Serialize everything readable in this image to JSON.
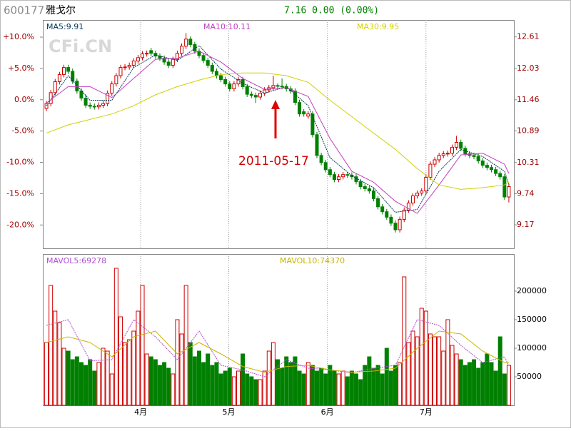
{
  "header": {
    "code": "600177",
    "name": "雅戈尔",
    "quote": "7.16  0.00  (0.00%)"
  },
  "watermark": "CFi.CN",
  "annotation": "2011-05-17",
  "chart_data": [
    {
      "type": "candlestick",
      "up_color": "#d00000",
      "down_color": "#008000",
      "xlim": [
        -0.5,
        106.5
      ],
      "ylim": [
        8.74,
        12.92
      ],
      "yticks": [
        12.61,
        12.03,
        11.46,
        10.89,
        10.31,
        9.74,
        9.17
      ],
      "y2lim": [
        -23.73,
        12.74
      ],
      "y2ticks": [
        {
          "value": 10,
          "label": "+10.0%"
        },
        {
          "value": 5,
          "label": "+5.0%"
        },
        {
          "value": 0,
          "label": "0.0%"
        },
        {
          "value": -5,
          "label": "-5.0%"
        },
        {
          "value": -10,
          "label": "-10.0%"
        },
        {
          "value": -15,
          "label": "-15.0%"
        },
        {
          "value": -20,
          "label": "-20.0%"
        }
      ],
      "open": [
        11.3,
        11.39,
        11.59,
        11.79,
        11.92,
        12.05,
        11.98,
        11.8,
        11.62,
        11.49,
        11.36,
        11.34,
        11.33,
        11.36,
        11.39,
        11.58,
        11.75,
        11.9,
        12.05,
        12.06,
        12.09,
        12.17,
        12.23,
        12.3,
        12.36,
        12.31,
        12.26,
        12.22,
        12.15,
        12.09,
        12.2,
        12.31,
        12.44,
        12.57,
        12.47,
        12.35,
        12.27,
        12.18,
        12.09,
        11.98,
        11.9,
        11.83,
        11.75,
        11.66,
        11.75,
        11.83,
        11.7,
        11.56,
        11.54,
        11.51,
        11.58,
        11.64,
        11.68,
        11.72,
        11.71,
        11.7,
        11.66,
        11.62,
        11.41,
        11.24,
        11.16,
        11.2,
        10.82,
        10.44,
        10.31,
        10.18,
        10.09,
        10.0,
        10.05,
        10.09,
        10.08,
        10.05,
        9.96,
        9.87,
        9.83,
        9.79,
        9.65,
        9.5,
        9.41,
        9.31,
        9.2,
        9.08,
        9.27,
        9.44,
        9.57,
        9.7,
        9.75,
        9.79,
        10.04,
        10.28,
        10.36,
        10.44,
        10.47,
        10.48,
        10.59,
        10.68,
        10.57,
        10.47,
        10.44,
        10.42,
        10.34,
        10.26,
        10.22,
        10.18,
        10.11,
        10.05,
        9.68
      ],
      "high": [
        11.44,
        11.64,
        11.84,
        11.97,
        12.1,
        12.1,
        12.03,
        11.85,
        11.67,
        11.54,
        11.41,
        11.39,
        11.41,
        11.44,
        11.63,
        11.8,
        11.95,
        12.1,
        12.11,
        12.14,
        12.22,
        12.28,
        12.35,
        12.36,
        12.41,
        12.36,
        12.31,
        12.27,
        12.2,
        12.25,
        12.36,
        12.49,
        12.68,
        12.62,
        12.52,
        12.4,
        12.32,
        12.23,
        12.14,
        12.03,
        11.95,
        11.88,
        11.8,
        11.8,
        11.88,
        11.88,
        11.75,
        11.61,
        11.59,
        11.63,
        11.69,
        11.73,
        11.9,
        11.76,
        11.85,
        11.75,
        11.71,
        11.67,
        11.46,
        11.29,
        11.25,
        11.25,
        10.87,
        10.49,
        10.36,
        10.23,
        10.14,
        10.1,
        10.14,
        10.14,
        10.13,
        10.1,
        10.01,
        9.92,
        9.88,
        9.84,
        9.7,
        9.55,
        9.46,
        9.36,
        9.25,
        9.32,
        9.49,
        9.62,
        9.75,
        9.8,
        9.84,
        10.09,
        10.33,
        10.41,
        10.49,
        10.52,
        10.53,
        10.64,
        10.8,
        10.73,
        10.62,
        10.52,
        10.49,
        10.47,
        10.39,
        10.31,
        10.27,
        10.23,
        10.16,
        10.1,
        9.92
      ],
      "low": [
        11.25,
        11.34,
        11.54,
        11.74,
        11.87,
        11.93,
        11.75,
        11.57,
        11.44,
        11.31,
        11.29,
        11.28,
        11.28,
        11.31,
        11.34,
        11.53,
        11.7,
        11.85,
        12.0,
        12.01,
        12.04,
        12.12,
        12.18,
        12.25,
        12.26,
        12.21,
        12.17,
        12.1,
        12.04,
        12.04,
        12.15,
        12.26,
        12.39,
        12.42,
        12.3,
        12.22,
        12.13,
        12.04,
        11.93,
        11.85,
        11.78,
        11.7,
        11.61,
        11.61,
        11.7,
        11.65,
        11.51,
        11.49,
        11.4,
        11.46,
        11.53,
        11.59,
        11.63,
        11.66,
        11.65,
        11.61,
        11.57,
        11.36,
        11.15,
        11.15,
        11.11,
        10.77,
        10.39,
        10.26,
        10.13,
        10.04,
        9.95,
        9.95,
        10.0,
        10.03,
        10.0,
        9.91,
        9.82,
        9.78,
        9.74,
        9.6,
        9.45,
        9.36,
        9.26,
        9.15,
        9.03,
        9.03,
        9.22,
        9.39,
        9.52,
        9.65,
        9.7,
        9.74,
        9.99,
        10.23,
        10.31,
        10.39,
        10.42,
        10.43,
        10.54,
        10.52,
        10.42,
        10.39,
        10.37,
        10.29,
        10.21,
        10.17,
        10.13,
        10.06,
        10.0,
        9.63,
        9.58
      ],
      "close": [
        11.39,
        11.59,
        11.79,
        11.92,
        12.05,
        11.98,
        11.8,
        11.62,
        11.49,
        11.36,
        11.34,
        11.33,
        11.36,
        11.39,
        11.58,
        11.75,
        11.9,
        12.05,
        12.06,
        12.09,
        12.17,
        12.23,
        12.3,
        12.31,
        12.31,
        12.26,
        12.22,
        12.15,
        12.09,
        12.2,
        12.31,
        12.44,
        12.57,
        12.47,
        12.35,
        12.27,
        12.18,
        12.09,
        11.98,
        11.9,
        11.83,
        11.75,
        11.66,
        11.75,
        11.83,
        11.7,
        11.56,
        11.54,
        11.51,
        11.58,
        11.64,
        11.68,
        11.72,
        11.71,
        11.7,
        11.66,
        11.62,
        11.41,
        11.2,
        11.2,
        11.2,
        10.82,
        10.44,
        10.31,
        10.18,
        10.09,
        10.0,
        10.05,
        10.09,
        10.08,
        10.05,
        9.96,
        9.87,
        9.83,
        9.79,
        9.65,
        9.5,
        9.41,
        9.31,
        9.2,
        9.08,
        9.27,
        9.44,
        9.57,
        9.7,
        9.75,
        9.79,
        10.04,
        10.28,
        10.36,
        10.44,
        10.47,
        10.48,
        10.59,
        10.68,
        10.57,
        10.47,
        10.44,
        10.42,
        10.34,
        10.26,
        10.22,
        10.18,
        10.11,
        10.05,
        9.68,
        9.87
      ],
      "series": [
        {
          "name": "MA5:9.91",
          "color": "#003a5a",
          "x": [
            0,
            5,
            10,
            15,
            20,
            25,
            30,
            35,
            40,
            45,
            50,
            55,
            60,
            65,
            70,
            75,
            80,
            85,
            90,
            95,
            100,
            105,
            106
          ],
          "values": [
            11.35,
            11.9,
            11.45,
            11.45,
            12.05,
            12.28,
            12.18,
            12.45,
            12.02,
            11.76,
            11.58,
            11.7,
            11.35,
            10.4,
            10.07,
            9.85,
            9.4,
            9.45,
            10.15,
            10.55,
            10.42,
            10.15,
            9.91
          ]
        },
        {
          "name": "MA10:10.11",
          "color": "#c040c0",
          "x": [
            0,
            5,
            10,
            15,
            20,
            25,
            30,
            35,
            40,
            45,
            50,
            55,
            60,
            65,
            70,
            75,
            80,
            85,
            90,
            95,
            100,
            105,
            106
          ],
          "values": [
            11.4,
            11.7,
            11.7,
            11.5,
            11.85,
            12.2,
            12.22,
            12.35,
            12.15,
            11.85,
            11.65,
            11.68,
            11.52,
            10.75,
            10.15,
            9.95,
            9.6,
            9.38,
            9.9,
            10.45,
            10.48,
            10.28,
            10.11
          ]
        },
        {
          "name": "MA30:9.95",
          "color": "#d0d000",
          "x": [
            0,
            5,
            10,
            15,
            20,
            25,
            30,
            35,
            40,
            45,
            50,
            55,
            60,
            65,
            70,
            75,
            80,
            85,
            90,
            95,
            100,
            105,
            106
          ],
          "values": [
            10.85,
            11.0,
            11.1,
            11.2,
            11.35,
            11.55,
            11.7,
            11.82,
            11.92,
            11.95,
            11.95,
            11.9,
            11.78,
            11.45,
            11.15,
            10.85,
            10.55,
            10.2,
            9.9,
            9.82,
            9.85,
            9.9,
            9.95
          ]
        }
      ]
    },
    {
      "type": "bar",
      "xlim": [
        -0.5,
        106.5
      ],
      "xticks": [
        {
          "value": 21.6,
          "label": "4月"
        },
        {
          "value": 41.8,
          "label": "5月"
        },
        {
          "value": 64.4,
          "label": "6月"
        },
        {
          "value": 87,
          "label": "7月"
        }
      ],
      "ylim": [
        0,
        265000
      ],
      "yticks": [
        200000,
        150000,
        100000,
        50000
      ],
      "values": [
        110000,
        210000,
        165000,
        145000,
        100000,
        95000,
        80000,
        85000,
        75000,
        70000,
        80000,
        60000,
        75000,
        100000,
        95000,
        55000,
        240000,
        155000,
        110000,
        115000,
        130000,
        165000,
        210000,
        90000,
        85000,
        80000,
        70000,
        75000,
        65000,
        55000,
        150000,
        125000,
        210000,
        110000,
        85000,
        95000,
        75000,
        90000,
        70000,
        75000,
        55000,
        60000,
        65000,
        50000,
        60000,
        90000,
        55000,
        50000,
        45000,
        45000,
        60000,
        95000,
        110000,
        80000,
        65000,
        85000,
        75000,
        85000,
        60000,
        55000,
        75000,
        70000,
        60000,
        65000,
        55000,
        70000,
        60000,
        55000,
        60000,
        50000,
        60000,
        55000,
        45000,
        70000,
        85000,
        65000,
        70000,
        55000,
        100000,
        60000,
        70000,
        75000,
        225000,
        110000,
        130000,
        120000,
        170000,
        165000,
        125000,
        120000,
        120000,
        95000,
        150000,
        105000,
        90000,
        80000,
        70000,
        75000,
        80000,
        65000,
        75000,
        90000,
        75000,
        60000,
        120000,
        55000,
        70000
      ],
      "series": [
        {
          "name": "MAVOL5:69278",
          "color": "#b050d0",
          "x": [
            0,
            5,
            10,
            15,
            20,
            25,
            30,
            35,
            40,
            45,
            50,
            55,
            60,
            65,
            70,
            75,
            80,
            85,
            90,
            95,
            100,
            105,
            106
          ],
          "values": [
            140000,
            150000,
            78000,
            80000,
            150000,
            120000,
            80000,
            130000,
            70000,
            62000,
            50000,
            80000,
            65000,
            62000,
            57000,
            65000,
            70000,
            150000,
            140000,
            105000,
            75000,
            85000,
            69278
          ]
        },
        {
          "name": "MAVOL10:74370",
          "color": "#c8b400",
          "x": [
            0,
            5,
            10,
            15,
            20,
            25,
            30,
            35,
            40,
            45,
            50,
            55,
            60,
            65,
            70,
            75,
            80,
            85,
            90,
            95,
            100,
            105,
            106
          ],
          "values": [
            110000,
            120000,
            110000,
            85000,
            120000,
            130000,
            90000,
            110000,
            90000,
            68000,
            58000,
            68000,
            70000,
            62000,
            58000,
            60000,
            65000,
            100000,
            130000,
            125000,
            95000,
            75000,
            74370
          ]
        }
      ]
    }
  ]
}
